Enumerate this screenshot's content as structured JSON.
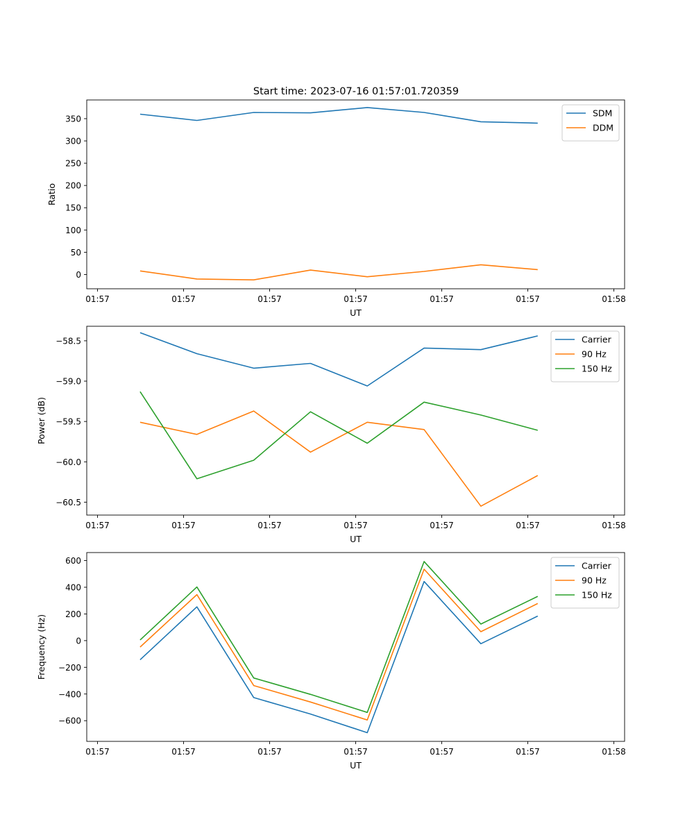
{
  "figure": {
    "title": "Start time: 2023-07-16 01:57:01.720359"
  },
  "chart_data": [
    {
      "type": "line",
      "title": "Start time: 2023-07-16 01:57:01.720359",
      "xlabel": "UT",
      "ylabel": "Ratio",
      "xlim": [
        0,
        6.25
      ],
      "ylim": [
        -32,
        392
      ],
      "xticks": [
        0.125,
        1.125,
        2.125,
        3.125,
        4.125,
        5.125,
        6.125
      ],
      "xtick_labels": [
        "01:57",
        "01:57",
        "01:57",
        "01:57",
        "01:57",
        "01:57",
        "01:58"
      ],
      "yticks": [
        0,
        50,
        100,
        150,
        200,
        250,
        300,
        350
      ],
      "ytick_labels": [
        "0",
        "50",
        "100",
        "150",
        "200",
        "250",
        "300",
        "350"
      ],
      "legend": "top-right",
      "x": [
        0.62,
        1.28,
        1.94,
        2.6,
        3.26,
        3.92,
        4.58,
        5.24
      ],
      "series": [
        {
          "name": "SDM",
          "color": "#1f77b4",
          "values": [
            360,
            346,
            364,
            363,
            375,
            364,
            343,
            340
          ]
        },
        {
          "name": "DDM",
          "color": "#ff7f0e",
          "values": [
            8,
            -10,
            -12,
            10,
            -5,
            7,
            22,
            11
          ]
        }
      ]
    },
    {
      "type": "line",
      "title": "",
      "xlabel": "UT",
      "ylabel": "Power (dB)",
      "xlim": [
        0,
        6.25
      ],
      "ylim": [
        -60.66,
        -58.32
      ],
      "xticks": [
        0.125,
        1.125,
        2.125,
        3.125,
        4.125,
        5.125,
        6.125
      ],
      "xtick_labels": [
        "01:57",
        "01:57",
        "01:57",
        "01:57",
        "01:57",
        "01:57",
        "01:58"
      ],
      "yticks": [
        -60.5,
        -60.0,
        -59.5,
        -59.0,
        -58.5
      ],
      "ytick_labels": [
        "−60.5",
        "−60.0",
        "−59.5",
        "−59.0",
        "−58.5"
      ],
      "legend": "top-right",
      "x": [
        0.62,
        1.28,
        1.94,
        2.6,
        3.26,
        3.92,
        4.58,
        5.24
      ],
      "series": [
        {
          "name": "Carrier",
          "color": "#1f77b4",
          "values": [
            -58.4,
            -58.66,
            -58.84,
            -58.78,
            -59.06,
            -58.59,
            -58.61,
            -58.44
          ]
        },
        {
          "name": "90 Hz",
          "color": "#ff7f0e",
          "values": [
            -59.51,
            -59.66,
            -59.37,
            -59.88,
            -59.51,
            -59.6,
            -60.55,
            -60.17
          ]
        },
        {
          "name": "150 Hz",
          "color": "#2ca02c",
          "values": [
            -59.13,
            -60.21,
            -59.98,
            -59.38,
            -59.77,
            -59.26,
            -59.42,
            -59.61
          ]
        }
      ]
    },
    {
      "type": "line",
      "title": "",
      "xlabel": "UT",
      "ylabel": "Frequency (Hz)",
      "xlim": [
        0,
        6.25
      ],
      "ylim": [
        -755,
        660
      ],
      "xticks": [
        0.125,
        1.125,
        2.125,
        3.125,
        4.125,
        5.125,
        6.125
      ],
      "xtick_labels": [
        "01:57",
        "01:57",
        "01:57",
        "01:57",
        "01:57",
        "01:57",
        "01:58"
      ],
      "yticks": [
        -600,
        -400,
        -200,
        0,
        200,
        400,
        600
      ],
      "ytick_labels": [
        "−600",
        "−400",
        "−200",
        "0",
        "200",
        "400",
        "600"
      ],
      "legend": "top-right",
      "x": [
        0.62,
        1.28,
        1.94,
        2.6,
        3.26,
        3.92,
        4.58,
        5.24
      ],
      "series": [
        {
          "name": "Carrier",
          "color": "#1f77b4",
          "values": [
            -143,
            253,
            -427,
            -550,
            -690,
            443,
            -23,
            184
          ]
        },
        {
          "name": "90 Hz",
          "color": "#ff7f0e",
          "values": [
            -48,
            345,
            -337,
            -460,
            -595,
            535,
            67,
            278
          ]
        },
        {
          "name": "150 Hz",
          "color": "#2ca02c",
          "values": [
            5,
            402,
            -280,
            -403,
            -538,
            593,
            124,
            332
          ]
        }
      ]
    }
  ]
}
